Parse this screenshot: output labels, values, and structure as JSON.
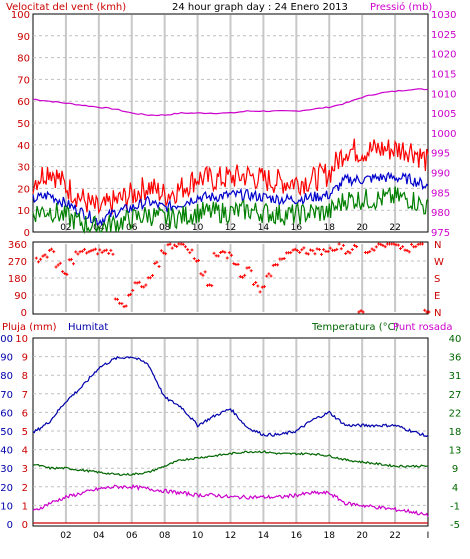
{
  "chart_data": [
    {
      "type": "line",
      "title": "24 hour graph day : 24 Enero 2013",
      "ylabel_left": "Velocitat del vent (kmh)",
      "ylabel_right": "Pressió (mb)",
      "x_tick_labels": [
        "02",
        "04",
        "06",
        "08",
        "10",
        "12",
        "14",
        "16",
        "18",
        "20",
        "22",
        "I"
      ],
      "x_range": [
        0,
        24
      ],
      "ylim_left": [
        0,
        100
      ],
      "ylim_right": [
        975,
        1030
      ],
      "yticks_left": [
        0,
        10,
        20,
        30,
        40,
        50,
        60,
        70,
        80,
        90,
        100
      ],
      "yticks_right": [
        975,
        980,
        985,
        990,
        995,
        1000,
        1005,
        1010,
        1015,
        1020,
        1025,
        1030
      ],
      "grid": true,
      "series": [
        {
          "axis": "right",
          "color": "#cc00cc",
          "x": [
            0,
            1,
            2,
            3,
            4,
            5,
            6,
            7,
            8,
            9,
            10,
            11,
            12,
            13,
            14,
            15,
            16,
            17,
            18,
            19,
            20,
            21,
            22,
            23,
            24
          ],
          "values": [
            1008.5,
            1008,
            1007.5,
            1007,
            1006.5,
            1006,
            1005,
            1004.5,
            1004.5,
            1005,
            1005,
            1005,
            1005,
            1005.5,
            1005.5,
            1005.5,
            1005.5,
            1006,
            1006.5,
            1007.5,
            1009,
            1010,
            1010.5,
            1011,
            1011
          ]
        },
        {
          "axis": "left",
          "color": "#ff0000",
          "x": [
            0,
            1,
            2,
            3,
            4,
            5,
            6,
            7,
            8,
            9,
            10,
            11,
            12,
            13,
            14,
            15,
            16,
            17,
            18,
            19,
            20,
            21,
            22,
            23,
            24
          ],
          "values": [
            23,
            29,
            21,
            15,
            10,
            14,
            17,
            21,
            17,
            20,
            25,
            24,
            25,
            26,
            24,
            23,
            23,
            24,
            27,
            38,
            37,
            38,
            38,
            38,
            32
          ]
        },
        {
          "axis": "left",
          "color": "#0000cc",
          "x": [
            0,
            1,
            2,
            3,
            4,
            5,
            6,
            7,
            8,
            9,
            10,
            11,
            12,
            13,
            14,
            15,
            16,
            17,
            18,
            19,
            20,
            21,
            22,
            23,
            24
          ],
          "values": [
            15,
            17,
            13,
            9,
            5,
            9,
            11,
            14,
            11,
            13,
            16,
            16,
            17,
            17,
            16,
            15,
            15,
            16,
            17,
            24,
            24,
            25,
            25,
            24,
            21
          ]
        },
        {
          "axis": "left",
          "color": "#008000",
          "x": [
            0,
            1,
            2,
            3,
            4,
            5,
            6,
            7,
            8,
            9,
            10,
            11,
            12,
            13,
            14,
            15,
            16,
            17,
            18,
            19,
            20,
            21,
            22,
            23,
            24
          ],
          "values": [
            9,
            10,
            7,
            4,
            2,
            4,
            6,
            8,
            6,
            7,
            9,
            9,
            9,
            10,
            9,
            8,
            8,
            9,
            9,
            15,
            15,
            15,
            16,
            15,
            11
          ]
        }
      ]
    },
    {
      "type": "scatter",
      "ylabel_right": [
        "N",
        "W",
        "S",
        "E",
        "N"
      ],
      "ylim": [
        0,
        360
      ],
      "yticks": [
        0,
        90,
        180,
        270,
        360
      ],
      "x_tick_labels": [
        "02",
        "04",
        "06",
        "08",
        "10",
        "12",
        "14",
        "16",
        "18",
        "20",
        "22",
        "I"
      ],
      "color": "#ff0000",
      "x": [
        0.2,
        0.6,
        1,
        1.4,
        1.8,
        2.2,
        2.6,
        3,
        3.4,
        3.8,
        4.2,
        4.6,
        5,
        5.4,
        5.8,
        6.2,
        6.6,
        7,
        7.4,
        7.8,
        8.2,
        8.6,
        9,
        9.4,
        9.8,
        10.2,
        10.6,
        11,
        11.4,
        11.8,
        12.2,
        12.6,
        13,
        13.4,
        13.8,
        14.2,
        14.6,
        15,
        15.4,
        15.8,
        16.2,
        16.6,
        17,
        17.4,
        17.8,
        18.2,
        18.6,
        19,
        19.4,
        19.8,
        20.2,
        20.6,
        21,
        21.4,
        21.8,
        22.2,
        22.6,
        23,
        23.4,
        23.8
      ],
      "values": [
        280,
        300,
        320,
        250,
        200,
        270,
        310,
        320,
        320,
        320,
        320,
        320,
        60,
        40,
        100,
        150,
        130,
        180,
        250,
        320,
        350,
        360,
        360,
        320,
        280,
        200,
        150,
        300,
        330,
        300,
        260,
        190,
        230,
        150,
        120,
        200,
        260,
        290,
        300,
        320,
        330,
        320,
        320,
        320,
        330,
        340,
        350,
        320,
        340,
        0,
        320,
        340,
        360,
        360,
        360,
        340,
        330,
        360,
        360,
        0
      ]
    },
    {
      "type": "line",
      "ylabel_left": "Pluja (mm)",
      "ylabel_left2": "Humitat",
      "ylabel_right": "Temperatura (°C)",
      "ylabel_right2": "Punt rosada",
      "x_tick_labels": [
        "02",
        "04",
        "06",
        "08",
        "10",
        "12",
        "14",
        "16",
        "18",
        "20",
        "22",
        "I"
      ],
      "ylim_rain": [
        0,
        10
      ],
      "ylim_humidity": [
        0,
        100
      ],
      "ylim_temp": [
        -5,
        40
      ],
      "yticks_rain": [
        0,
        1,
        2,
        3,
        4,
        5,
        6,
        7,
        8,
        9,
        10
      ],
      "yticks_humidity": [
        0,
        10,
        20,
        30,
        40,
        50,
        60,
        70,
        80,
        90,
        100
      ],
      "yticks_temp": [
        -5,
        -1,
        4,
        9,
        13,
        18,
        22,
        27,
        31,
        36,
        40
      ],
      "grid": true,
      "series": [
        {
          "axis": "humidity",
          "color": "#0000aa",
          "x": [
            0,
            1,
            2,
            3,
            4,
            5,
            6,
            7,
            8,
            9,
            10,
            11,
            12,
            13,
            14,
            15,
            16,
            17,
            18,
            19,
            20,
            21,
            22,
            23,
            24
          ],
          "values": [
            49,
            55,
            66,
            74,
            84,
            89,
            90,
            86,
            68,
            63,
            53,
            58,
            62,
            52,
            48,
            48,
            50,
            56,
            60,
            53,
            53,
            53,
            53,
            50,
            47
          ]
        },
        {
          "axis": "temp",
          "color": "#006600",
          "x": [
            0,
            1,
            2,
            3,
            4,
            5,
            6,
            7,
            8,
            9,
            10,
            11,
            12,
            13,
            14,
            15,
            16,
            17,
            18,
            19,
            20,
            21,
            22,
            23,
            24
          ],
          "values": [
            9.5,
            8.5,
            8.5,
            8,
            7.5,
            7,
            7,
            7.5,
            9,
            10.5,
            11,
            11.5,
            12,
            12.5,
            12.5,
            12,
            12,
            12,
            11.5,
            10.5,
            10,
            9.5,
            9,
            9,
            9
          ]
        },
        {
          "axis": "temp",
          "color": "#cc00cc",
          "x": [
            0,
            1,
            2,
            3,
            4,
            5,
            6,
            7,
            8,
            9,
            10,
            11,
            12,
            13,
            14,
            15,
            16,
            17,
            18,
            19,
            20,
            21,
            22,
            23,
            24
          ],
          "values": [
            -2,
            0,
            1.5,
            2.5,
            3.5,
            4,
            4,
            3.5,
            3,
            2.5,
            2,
            2,
            1.5,
            1.5,
            1.5,
            1.5,
            2,
            2.5,
            2.5,
            0,
            -0.5,
            -1,
            -1.5,
            -2,
            -3
          ]
        },
        {
          "axis": "rain",
          "color": "#cc0000",
          "x": [
            0,
            24
          ],
          "values": [
            0,
            0
          ]
        }
      ]
    }
  ],
  "colors": {
    "frame": "#000000",
    "grid": "#c0c0c0",
    "vgrid": "#c8c8c8",
    "wind_title": "#cc0000",
    "press_title": "#cc00cc",
    "title": "#000000",
    "rain_title": "#cc0000",
    "hum_title": "#0000aa",
    "temp_title": "#006600",
    "dew_title": "#cc00cc"
  }
}
